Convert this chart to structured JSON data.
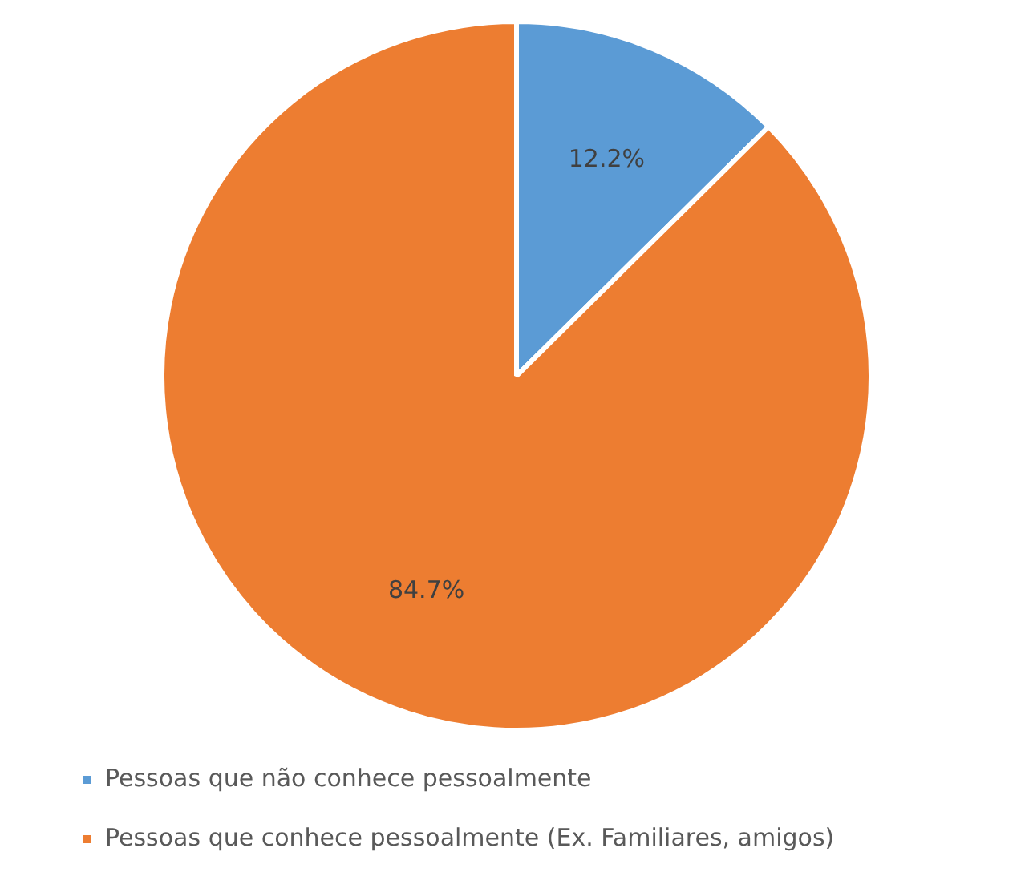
{
  "chart_data": {
    "type": "pie",
    "categories": [
      "Pessoas que não conhece pessoalmente",
      "Pessoas que conhece pessoalmente (Ex. Familiares, amigos)"
    ],
    "values": [
      12.2,
      84.7
    ],
    "colors": [
      "#5b9bd5",
      "#ed7d31"
    ],
    "value_labels": [
      "12.2%",
      "84.7%"
    ],
    "legend": "bottom"
  }
}
